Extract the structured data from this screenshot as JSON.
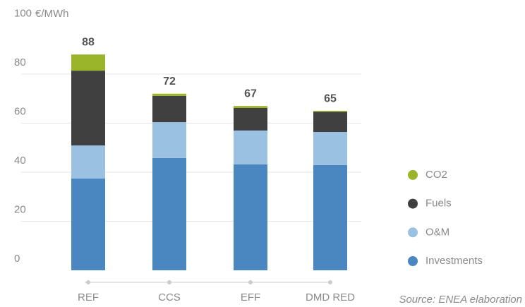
{
  "chart_data": {
    "type": "stacked_bar",
    "y_unit": "€/MWh",
    "categories": [
      "REF",
      "CCS",
      "EFF",
      "DMD RED"
    ],
    "series": [
      {
        "name": "Investments",
        "color": "#4a86c0",
        "values": [
          37.4,
          45.8,
          43.2,
          42.9
        ]
      },
      {
        "name": "O&M",
        "color": "#9bc1e2",
        "values": [
          13.5,
          14.6,
          13.8,
          13.5
        ]
      },
      {
        "name": "Fuels",
        "color": "#404040",
        "values": [
          30.5,
          10.7,
          9.2,
          8.2
        ]
      },
      {
        "name": "CO2",
        "color": "#9ab52a",
        "values": [
          6.6,
          0.9,
          0.8,
          0.4
        ]
      }
    ],
    "totals": [
      88,
      72,
      67,
      65
    ],
    "ylim": [
      0,
      100
    ],
    "yticks": [
      0,
      20,
      40,
      60,
      80,
      100
    ],
    "grid": true,
    "source": "Source: ENEA elaboration"
  }
}
